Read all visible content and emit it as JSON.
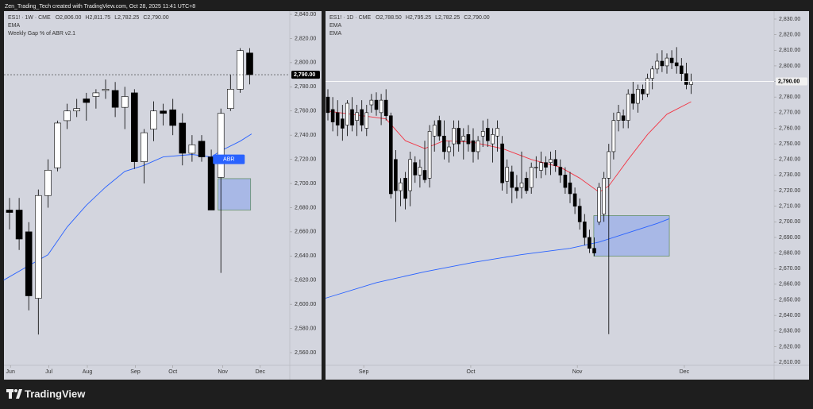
{
  "header": {
    "title": "Zen_Trading_Tech created with TradingView.com, Oct 28, 2025 11:41 UTC+8"
  },
  "footer": {
    "brand": "TradingView"
  },
  "chart_data": [
    {
      "type": "candlestick",
      "symbol": "ES1! · 1W · CME",
      "ohlc_labels": [
        "O2,806.00",
        "H2,811.75",
        "L2,782.25",
        "C2,790.00"
      ],
      "indicator": "Weekly Gap % of ABR v2.1",
      "open": [
        2678,
        2678,
        2660,
        2605,
        2690,
        2713,
        2752,
        2760,
        2770,
        2772,
        2777,
        2777,
        2763,
        2775,
        2718,
        2745,
        2760,
        2761,
        2750,
        2725,
        2735,
        2722,
        2705,
        2762,
        2778,
        2808
      ],
      "high": [
        2688,
        2688,
        2668,
        2695,
        2720,
        2752,
        2766,
        2770,
        2775,
        2778,
        2786,
        2784,
        2780,
        2778,
        2745,
        2768,
        2766,
        2770,
        2758,
        2740,
        2740,
        2728,
        2762,
        2790,
        2812,
        2812
      ],
      "low": [
        2662,
        2645,
        2595,
        2575,
        2680,
        2710,
        2745,
        2755,
        2752,
        2762,
        2770,
        2755,
        2745,
        2712,
        2700,
        2735,
        2748,
        2740,
        2715,
        2718,
        2718,
        2678,
        2626,
        2760,
        2775,
        2782
      ],
      "close": [
        2676,
        2654,
        2607,
        2690,
        2711,
        2750,
        2760,
        2762,
        2767,
        2775,
        2778,
        2763,
        2772,
        2718,
        2742,
        2760,
        2758,
        2748,
        2725,
        2732,
        2722,
        2678,
        2758,
        2778,
        2810,
        2790
      ],
      "series": [
        {
          "name": "EMA",
          "color": "#2962ff",
          "x": [
            -0.6,
            2,
            4,
            6,
            8,
            10,
            12,
            14,
            16,
            19,
            21,
            22,
            24,
            25.2
          ],
          "values": [
            2620,
            2632,
            2641,
            2664,
            2682,
            2697,
            2710,
            2715,
            2722,
            2724,
            2722,
            2727,
            2735,
            2741
          ]
        }
      ],
      "boxes": [
        {
          "x": [
            21.7,
            25.1
          ],
          "y": [
            2678,
            2704
          ]
        }
      ],
      "annotations": [
        {
          "text": "ABR",
          "x": 22.5,
          "y": 2720
        }
      ],
      "last_price": {
        "value": 2790,
        "label": "2,790.00"
      },
      "last_price_line": "dashed",
      "ylim": [
        2549.5,
        2843.3
      ],
      "yticks": [
        {
          "value": 2560,
          "label": "2,560.00"
        },
        {
          "value": 2580,
          "label": "2,580.00"
        },
        {
          "value": 2600,
          "label": "2,600.00"
        },
        {
          "value": 2620,
          "label": "2,620.00"
        },
        {
          "value": 2640,
          "label": "2,640.00"
        },
        {
          "value": 2660,
          "label": "2,660.00"
        },
        {
          "value": 2680,
          "label": "2,680.00"
        },
        {
          "value": 2700,
          "label": "2,700.00"
        },
        {
          "value": 2720,
          "label": "2,720.00"
        },
        {
          "value": 2740,
          "label": "2,740.00"
        },
        {
          "value": 2760,
          "label": "2,760.00"
        },
        {
          "value": 2780,
          "label": "2,780.00"
        },
        {
          "value": 2800,
          "label": "2,800.00"
        },
        {
          "value": 2820,
          "label": "2,820.00"
        },
        {
          "value": 2840,
          "label": "2,840.00"
        }
      ],
      "xticks": [
        {
          "value": 0.1,
          "label": "Jun"
        },
        {
          "value": 4.1,
          "label": "Jul"
        },
        {
          "value": 8.1,
          "label": "Aug"
        },
        {
          "value": 13.1,
          "label": "Sep"
        },
        {
          "value": 17,
          "label": "Oct"
        },
        {
          "value": 22.2,
          "label": "Nov"
        },
        {
          "value": 26.1,
          "label": "Dec"
        }
      ]
    },
    {
      "type": "candlestick",
      "symbol": "ES1! · 1D · CME",
      "ohlc_labels": [
        "O2,788.50",
        "H2,795.25",
        "L2,782.25",
        "C2,790.00"
      ],
      "open": [
        2780,
        2772,
        2770,
        2766,
        2762,
        2772,
        2765,
        2772,
        2760,
        2775,
        2778,
        2770,
        2778,
        2768,
        2740,
        2720,
        2728,
        2720,
        2738,
        2730,
        2733,
        2728,
        2755,
        2765,
        2755,
        2745,
        2750,
        2760,
        2752,
        2756,
        2752,
        2745,
        2755,
        2760,
        2750,
        2755,
        2750,
        2726,
        2732,
        2722,
        2722,
        2728,
        2722,
        2735,
        2733,
        2738,
        2738,
        2740,
        2735,
        2730,
        2725,
        2718,
        2710,
        2700,
        2690,
        2683,
        2700,
        2705,
        2728,
        2745,
        2765,
        2768,
        2765,
        2782,
        2776,
        2785,
        2782,
        2792,
        2798,
        2803,
        2800,
        2805,
        2802,
        2800,
        2795,
        2788
      ],
      "high": [
        2785,
        2780,
        2778,
        2775,
        2778,
        2780,
        2775,
        2778,
        2775,
        2782,
        2783,
        2782,
        2785,
        2770,
        2746,
        2728,
        2732,
        2745,
        2742,
        2740,
        2752,
        2762,
        2765,
        2768,
        2765,
        2752,
        2765,
        2765,
        2760,
        2762,
        2760,
        2755,
        2765,
        2766,
        2760,
        2765,
        2755,
        2740,
        2736,
        2730,
        2745,
        2732,
        2738,
        2742,
        2745,
        2742,
        2745,
        2746,
        2740,
        2735,
        2732,
        2722,
        2715,
        2705,
        2695,
        2690,
        2725,
        2732,
        2750,
        2770,
        2775,
        2772,
        2785,
        2790,
        2788,
        2788,
        2795,
        2800,
        2808,
        2810,
        2808,
        2810,
        2812,
        2805,
        2802,
        2795
      ],
      "low": [
        2765,
        2758,
        2755,
        2752,
        2755,
        2758,
        2755,
        2758,
        2755,
        2770,
        2768,
        2762,
        2765,
        2715,
        2700,
        2710,
        2708,
        2710,
        2725,
        2722,
        2725,
        2722,
        2745,
        2752,
        2740,
        2738,
        2742,
        2745,
        2740,
        2745,
        2738,
        2740,
        2748,
        2748,
        2738,
        2745,
        2720,
        2718,
        2712,
        2715,
        2715,
        2718,
        2718,
        2728,
        2728,
        2730,
        2730,
        2732,
        2725,
        2718,
        2712,
        2705,
        2695,
        2685,
        2680,
        2678,
        2698,
        2700,
        2628,
        2740,
        2758,
        2760,
        2760,
        2772,
        2770,
        2778,
        2780,
        2785,
        2795,
        2796,
        2795,
        2798,
        2795,
        2790,
        2785,
        2782
      ],
      "close": [
        2770,
        2764,
        2762,
        2760,
        2776,
        2762,
        2770,
        2762,
        2770,
        2778,
        2772,
        2778,
        2768,
        2718,
        2720,
        2725,
        2715,
        2740,
        2730,
        2735,
        2727,
        2758,
        2762,
        2755,
        2745,
        2748,
        2760,
        2750,
        2755,
        2750,
        2745,
        2752,
        2758,
        2752,
        2756,
        2760,
        2725,
        2735,
        2722,
        2720,
        2725,
        2720,
        2735,
        2735,
        2738,
        2735,
        2740,
        2736,
        2730,
        2722,
        2718,
        2710,
        2700,
        2690,
        2683,
        2680,
        2722,
        2728,
        2745,
        2765,
        2770,
        2765,
        2782,
        2776,
        2785,
        2782,
        2792,
        2798,
        2803,
        2800,
        2805,
        2802,
        2800,
        2795,
        2788,
        2790
      ],
      "series": [
        {
          "name": "EMA",
          "color": "#f23645",
          "x": [
            0,
            12,
            16,
            20,
            24,
            30,
            36,
            42,
            48,
            52,
            56,
            58,
            62,
            66,
            70,
            75
          ],
          "values": [
            2771,
            2766,
            2752,
            2747,
            2752,
            2751,
            2747,
            2740,
            2735,
            2728,
            2719,
            2723,
            2740,
            2756,
            2769,
            2777
          ]
        },
        {
          "name": "EMA",
          "color": "#2962ff",
          "x": [
            -0.5,
            10,
            20,
            30,
            40,
            50,
            56,
            62,
            68,
            70.5
          ],
          "values": [
            2651,
            2661,
            2668,
            2674,
            2679,
            2683,
            2687,
            2693,
            2699,
            2702
          ]
        }
      ],
      "boxes": [
        {
          "x": [
            54.9,
            70.5
          ],
          "y": [
            2678,
            2704
          ]
        }
      ],
      "last_price": {
        "value": 2790,
        "label": "2,790.00"
      },
      "last_price_line": "solid",
      "ylim": [
        2608,
        2835.6
      ],
      "yticks": [
        {
          "value": 2610,
          "label": "2,610.00"
        },
        {
          "value": 2620,
          "label": "2,620.00"
        },
        {
          "value": 2630,
          "label": "2,630.00"
        },
        {
          "value": 2640,
          "label": "2,640.00"
        },
        {
          "value": 2650,
          "label": "2,650.00"
        },
        {
          "value": 2660,
          "label": "2,660.00"
        },
        {
          "value": 2670,
          "label": "2,670.00"
        },
        {
          "value": 2680,
          "label": "2,680.00"
        },
        {
          "value": 2690,
          "label": "2,690.00"
        },
        {
          "value": 2700,
          "label": "2,700.00"
        },
        {
          "value": 2710,
          "label": "2,710.00"
        },
        {
          "value": 2720,
          "label": "2,720.00"
        },
        {
          "value": 2730,
          "label": "2,730.00"
        },
        {
          "value": 2740,
          "label": "2,740.00"
        },
        {
          "value": 2750,
          "label": "2,750.00"
        },
        {
          "value": 2760,
          "label": "2,760.00"
        },
        {
          "value": 2770,
          "label": "2,770.00"
        },
        {
          "value": 2780,
          "label": "2,780.00"
        },
        {
          "value": 2790,
          "label": "2,790.00"
        },
        {
          "value": 2800,
          "label": "2,800.00"
        },
        {
          "value": 2810,
          "label": "2,810.00"
        },
        {
          "value": 2820,
          "label": "2,820.00"
        },
        {
          "value": 2830,
          "label": "2,830.00"
        }
      ],
      "xticks": [
        {
          "value": 7.4,
          "label": "Sep"
        },
        {
          "value": 29.5,
          "label": "Oct"
        },
        {
          "value": 51.5,
          "label": "Nov"
        },
        {
          "value": 73.6,
          "label": "Dec"
        }
      ]
    }
  ]
}
